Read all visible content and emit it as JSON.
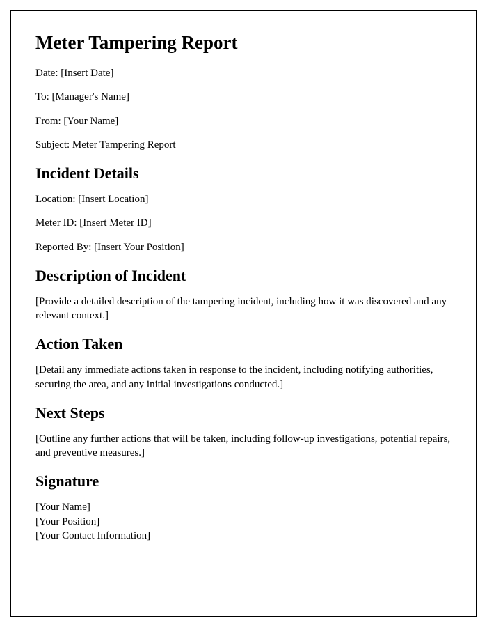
{
  "title": "Meter Tampering Report",
  "header": {
    "date_label": "Date: [Insert Date]",
    "to_label": "To: [Manager's Name]",
    "from_label": "From: [Your Name]",
    "subject_label": "Subject: Meter Tampering Report"
  },
  "sections": {
    "incident_details": {
      "heading": "Incident Details",
      "location": "Location: [Insert Location]",
      "meter_id": "Meter ID: [Insert Meter ID]",
      "reported_by": "Reported By: [Insert Your Position]"
    },
    "description": {
      "heading": "Description of Incident",
      "body": "[Provide a detailed description of the tampering incident, including how it was discovered and any relevant context.]"
    },
    "action_taken": {
      "heading": "Action Taken",
      "body": "[Detail any immediate actions taken in response to the incident, including notifying authorities, securing the area, and any initial investigations conducted.]"
    },
    "next_steps": {
      "heading": "Next Steps",
      "body": "[Outline any further actions that will be taken, including follow-up investigations, potential repairs, and preventive measures.]"
    },
    "signature": {
      "heading": "Signature",
      "name": "[Your Name]",
      "position": "[Your Position]",
      "contact": "[Your Contact Information]"
    }
  }
}
